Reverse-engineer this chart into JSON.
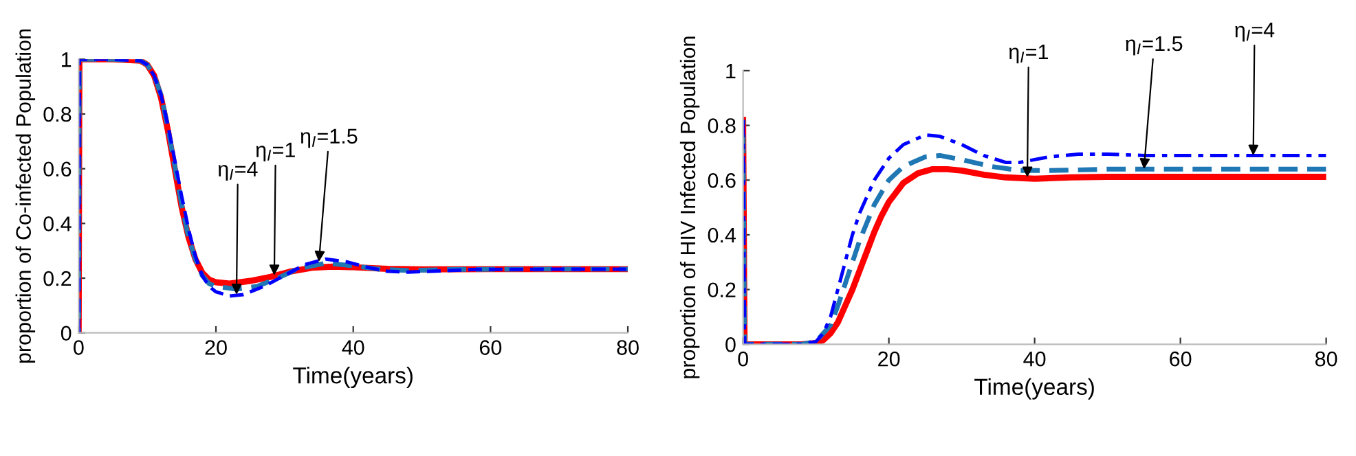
{
  "chart_data": [
    {
      "type": "line",
      "xlabel": "Time(years)",
      "ylabel": "proportion of Co-infected Population",
      "xlim": [
        0,
        80
      ],
      "ylim": [
        0,
        1
      ],
      "xticks": [
        0,
        20,
        40,
        60,
        80
      ],
      "yticks": [
        0,
        0.2,
        0.4,
        0.6,
        0.8,
        1
      ],
      "grid": false,
      "legend": false,
      "series": [
        {
          "color": "#ff0000",
          "line_style": "solid",
          "x": [
            0,
            0.1,
            5,
            9,
            10,
            11,
            12,
            13,
            14,
            15,
            16,
            17,
            18,
            19,
            20,
            22,
            25,
            28,
            31,
            34,
            37,
            40,
            45,
            50,
            60,
            70,
            80
          ],
          "values": [
            0,
            1,
            1,
            0.995,
            0.98,
            0.94,
            0.86,
            0.74,
            0.6,
            0.46,
            0.35,
            0.27,
            0.22,
            0.195,
            0.185,
            0.18,
            0.19,
            0.205,
            0.225,
            0.238,
            0.242,
            0.24,
            0.234,
            0.232,
            0.233,
            0.233,
            0.233
          ]
        },
        {
          "color": "#1f77b4",
          "line_style": "dashed",
          "x": [
            0,
            0.1,
            5,
            9,
            10,
            11,
            12,
            13,
            14,
            15,
            16,
            17,
            18,
            19,
            20,
            23,
            26,
            29,
            32,
            36,
            40,
            44,
            48,
            55,
            65,
            80
          ],
          "values": [
            0,
            1,
            1,
            0.995,
            0.98,
            0.94,
            0.87,
            0.75,
            0.61,
            0.47,
            0.35,
            0.27,
            0.21,
            0.18,
            0.17,
            0.16,
            0.17,
            0.2,
            0.235,
            0.255,
            0.245,
            0.232,
            0.228,
            0.232,
            0.233,
            0.233
          ]
        },
        {
          "color": "#0000ff",
          "line_style": "dashed",
          "x": [
            0,
            0.1,
            5,
            9,
            10,
            11,
            12,
            13,
            14,
            15,
            16,
            17,
            18,
            19,
            20,
            22,
            24,
            27,
            30,
            33,
            36,
            39,
            42,
            45,
            48,
            52,
            58,
            80
          ],
          "values": [
            0,
            1,
            1,
            0.995,
            0.98,
            0.94,
            0.87,
            0.76,
            0.63,
            0.5,
            0.38,
            0.28,
            0.21,
            0.17,
            0.15,
            0.135,
            0.14,
            0.17,
            0.21,
            0.25,
            0.27,
            0.26,
            0.24,
            0.225,
            0.222,
            0.226,
            0.232,
            0.233
          ]
        }
      ],
      "annotations": [
        {
          "text": "η$_{I}$=4",
          "x": 23,
          "y": 0.14
        },
        {
          "text": "η$_{I}$=1",
          "x": 28.5,
          "y": 0.21
        },
        {
          "text": "η$_{I}$=1.5",
          "x": 35,
          "y": 0.26
        }
      ]
    },
    {
      "type": "line",
      "xlabel": "Time(years)",
      "ylabel": "proportion of HIV Infected Population",
      "xlim": [
        0,
        80
      ],
      "ylim": [
        0,
        1
      ],
      "xticks": [
        0,
        20,
        40,
        60,
        80
      ],
      "yticks": [
        0,
        0.2,
        0.4,
        0.6,
        0.8,
        1
      ],
      "grid": false,
      "legend": false,
      "series": [
        {
          "color": "#ff0000",
          "line_style": "solid",
          "x": [
            0,
            0.2,
            8,
            10,
            11,
            12,
            13,
            14,
            15,
            16,
            17,
            18,
            19,
            20,
            22,
            24,
            26,
            28,
            30,
            33,
            36,
            40,
            45,
            50,
            60,
            80
          ],
          "values": [
            0.82,
            0,
            0,
            0.005,
            0.015,
            0.04,
            0.08,
            0.14,
            0.2,
            0.27,
            0.34,
            0.41,
            0.47,
            0.52,
            0.59,
            0.625,
            0.64,
            0.64,
            0.635,
            0.62,
            0.61,
            0.605,
            0.61,
            0.612,
            0.612,
            0.612
          ]
        },
        {
          "color": "#1f77b4",
          "line_style": "dashed",
          "x": [
            0,
            0.2,
            8,
            10,
            12,
            13,
            14,
            15,
            16,
            18,
            20,
            22,
            25,
            27,
            30,
            34,
            38,
            42,
            50,
            80
          ],
          "values": [
            0.82,
            0,
            0,
            0.01,
            0.07,
            0.14,
            0.22,
            0.3,
            0.38,
            0.51,
            0.6,
            0.65,
            0.685,
            0.69,
            0.675,
            0.65,
            0.635,
            0.635,
            0.64,
            0.64
          ]
        },
        {
          "color": "#0000ff",
          "line_style": "dashdot",
          "x": [
            0,
            0.2,
            8,
            10,
            11,
            12,
            13,
            14,
            15,
            16,
            18,
            20,
            22,
            25,
            27,
            30,
            33,
            36,
            38,
            42,
            46,
            50,
            55,
            80
          ],
          "values": [
            0.82,
            0,
            0,
            0.01,
            0.04,
            0.1,
            0.2,
            0.3,
            0.4,
            0.48,
            0.6,
            0.68,
            0.73,
            0.765,
            0.76,
            0.73,
            0.69,
            0.665,
            0.665,
            0.685,
            0.695,
            0.695,
            0.69,
            0.69
          ]
        }
      ],
      "annotations": [
        {
          "text": "η$_{I}$=1",
          "x": 39,
          "y": 0.61
        },
        {
          "text": "η$_{I}$=1.5",
          "x": 55,
          "y": 0.64
        },
        {
          "text": "η$_{I}$=4",
          "x": 70,
          "y": 0.69
        }
      ]
    }
  ]
}
